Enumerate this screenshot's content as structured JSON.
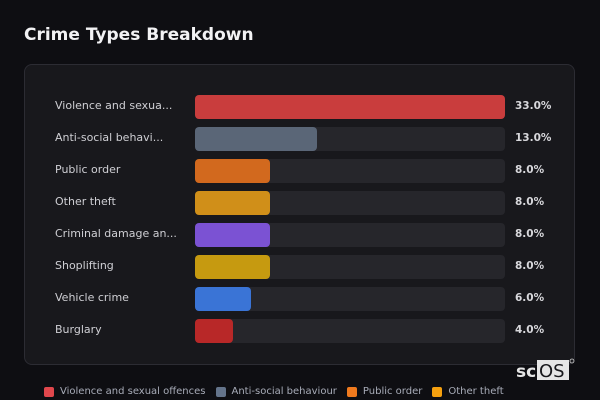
{
  "title": "Crime Types Breakdown",
  "chart_data": {
    "type": "bar",
    "orientation": "horizontal",
    "title": "Crime Types Breakdown",
    "categories": [
      "Violence and sexua...",
      "Anti-social behavi...",
      "Public order",
      "Other theft",
      "Criminal damage an...",
      "Shoplifting",
      "Vehicle crime",
      "Burglary"
    ],
    "values": [
      33.0,
      13.0,
      8.0,
      8.0,
      8.0,
      8.0,
      6.0,
      4.0
    ],
    "value_labels": [
      "33.0%",
      "13.0%",
      "8.0%",
      "8.0%",
      "8.0%",
      "8.0%",
      "6.0%",
      "4.0%"
    ],
    "colors": [
      "#c93d3d",
      "#5a6677",
      "#d2691e",
      "#d08f19",
      "#7b52d3",
      "#c69a10",
      "#3a74d6",
      "#b82828"
    ],
    "xlim": [
      0,
      33
    ],
    "grid": false,
    "legend_placement": "bottom",
    "legend": [
      {
        "name": "Violence and sexual offences",
        "color": "#e0474c"
      },
      {
        "name": "Anti-social behaviour",
        "color": "#64748b"
      },
      {
        "name": "Public order",
        "color": "#f07a1e"
      },
      {
        "name": "Other theft",
        "color": "#f5a00f"
      }
    ]
  },
  "watermark": "scOS"
}
